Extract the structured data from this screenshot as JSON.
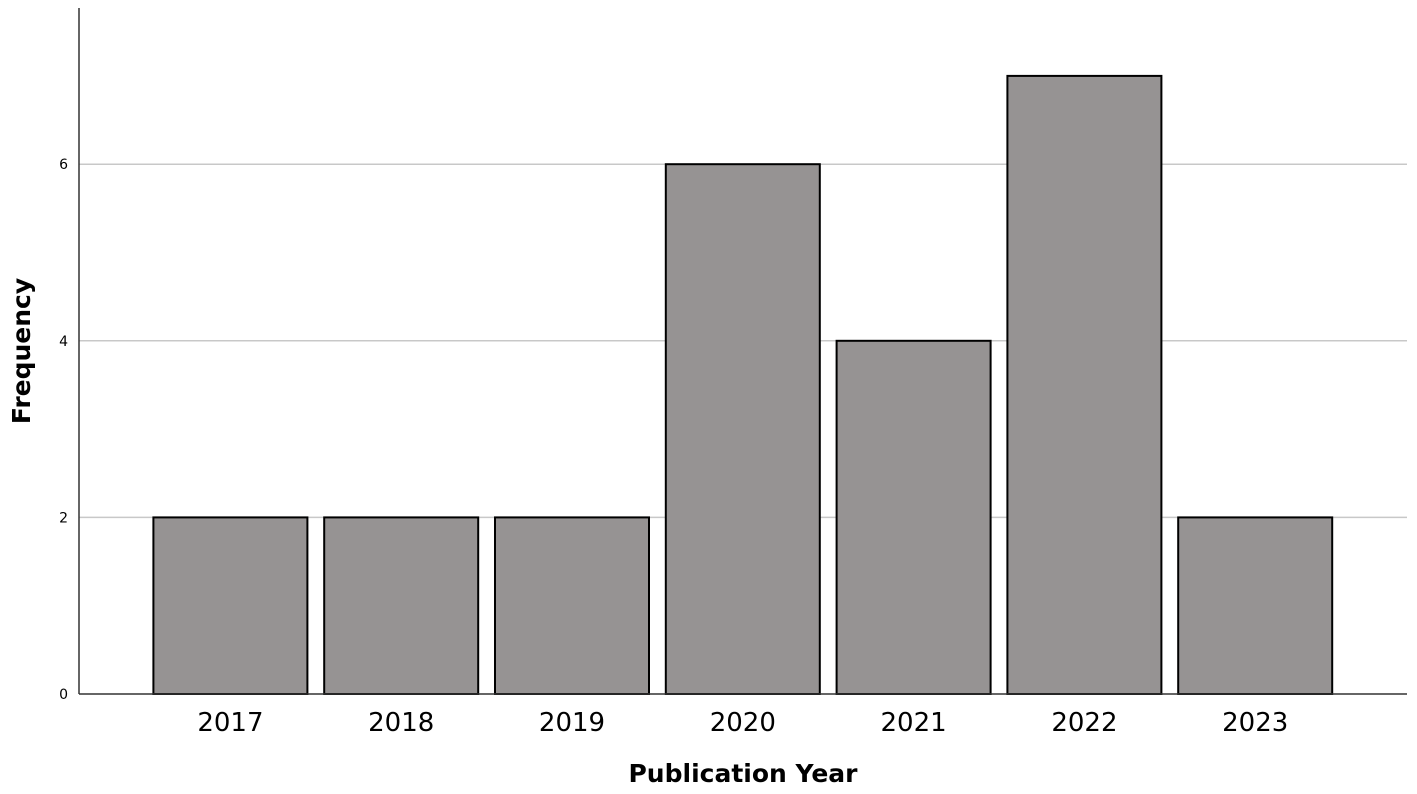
{
  "chart_data": {
    "type": "bar",
    "categories": [
      "2017",
      "2018",
      "2019",
      "2020",
      "2021",
      "2022",
      "2023"
    ],
    "values": [
      2,
      2,
      2,
      6,
      4,
      7,
      2
    ],
    "title": "",
    "xlabel": "Publication Year",
    "ylabel": "Frequency",
    "ylim": [
      0,
      7.8
    ],
    "yticks": [
      0,
      2,
      4,
      6
    ],
    "grid": "horizontal",
    "bar_color": "#969393",
    "bar_edge_color": "#000000"
  }
}
